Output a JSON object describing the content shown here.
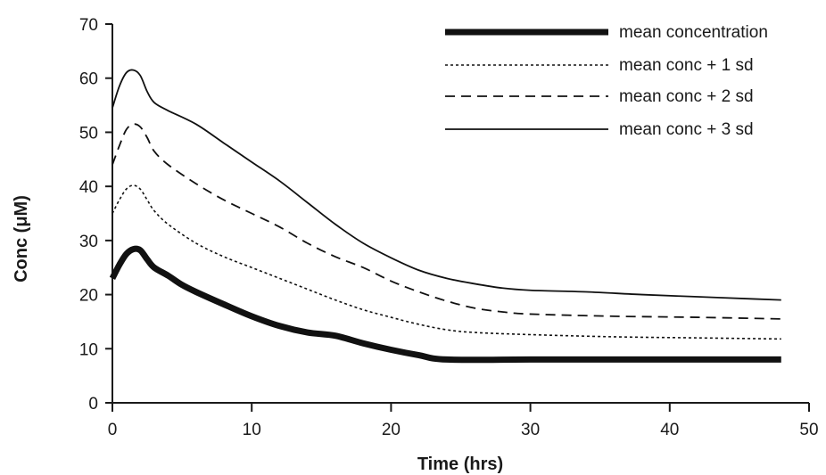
{
  "chart_data": {
    "type": "line",
    "title": "",
    "xlabel": "Time (hrs)",
    "ylabel": "Conc (μM)",
    "xlim": [
      0,
      50
    ],
    "ylim": [
      0,
      70
    ],
    "xticks": [
      "0",
      "10",
      "20",
      "30",
      "40",
      "50"
    ],
    "yticks": [
      "0",
      "10",
      "20",
      "30",
      "40",
      "50",
      "60",
      "70"
    ],
    "grid": false,
    "legend_position": "top-right",
    "series": [
      {
        "name": "mean concentration",
        "style": "thick-solid",
        "x": [
          0,
          0.5,
          1,
          1.5,
          2,
          2.5,
          3,
          4,
          5,
          6,
          8,
          10,
          12,
          14,
          16,
          18,
          20,
          22,
          24,
          30,
          36,
          42,
          48
        ],
        "y": [
          23,
          25.5,
          27.5,
          28.4,
          28.2,
          26.5,
          25,
          23.5,
          21.8,
          20.5,
          18.2,
          16,
          14.2,
          13,
          12.4,
          11,
          9.8,
          8.8,
          8,
          8,
          8,
          8,
          8
        ]
      },
      {
        "name": "mean conc + 1 sd",
        "style": "dotted",
        "x": [
          0,
          0.5,
          1,
          1.5,
          2,
          2.5,
          3,
          4,
          6,
          8,
          10,
          12,
          14,
          16,
          18,
          20,
          22,
          24,
          26,
          30,
          36,
          42,
          48
        ],
        "y": [
          35,
          37.5,
          39.5,
          40.2,
          39.5,
          37.5,
          35.5,
          33,
          29.5,
          27,
          25,
          23,
          21,
          19,
          17.2,
          15.8,
          14.5,
          13.5,
          13,
          12.6,
          12.2,
          12,
          11.8
        ]
      },
      {
        "name": "mean conc + 2 sd",
        "style": "dashed",
        "x": [
          0,
          0.5,
          1,
          1.5,
          2,
          2.5,
          3,
          4,
          6,
          8,
          10,
          12,
          14,
          16,
          18,
          20,
          22,
          24,
          26,
          28,
          30,
          36,
          42,
          48
        ],
        "y": [
          44,
          47.5,
          50.5,
          51.5,
          51,
          49,
          46.5,
          44,
          40.5,
          37.5,
          35,
          32.5,
          29.5,
          27,
          25,
          22.5,
          20.5,
          18.8,
          17.5,
          16.8,
          16.4,
          16,
          15.8,
          15.5
        ]
      },
      {
        "name": "mean conc + 3 sd",
        "style": "thin-solid",
        "x": [
          0,
          0.5,
          1,
          1.5,
          2,
          2.5,
          3,
          4,
          6,
          8,
          10,
          12,
          14,
          16,
          18,
          20,
          22,
          24,
          26,
          28,
          30,
          34,
          38,
          42,
          46,
          48
        ],
        "y": [
          54.5,
          58.5,
          61,
          61.5,
          60.5,
          57.5,
          55.5,
          54,
          51.5,
          48,
          44.5,
          41,
          37,
          33,
          29.5,
          26.8,
          24.5,
          23,
          22,
          21.2,
          20.8,
          20.5,
          20,
          19.6,
          19.2,
          19
        ]
      }
    ]
  },
  "colors": {
    "axis": "#1a1a1a",
    "line": "#111111",
    "background": "#ffffff"
  }
}
